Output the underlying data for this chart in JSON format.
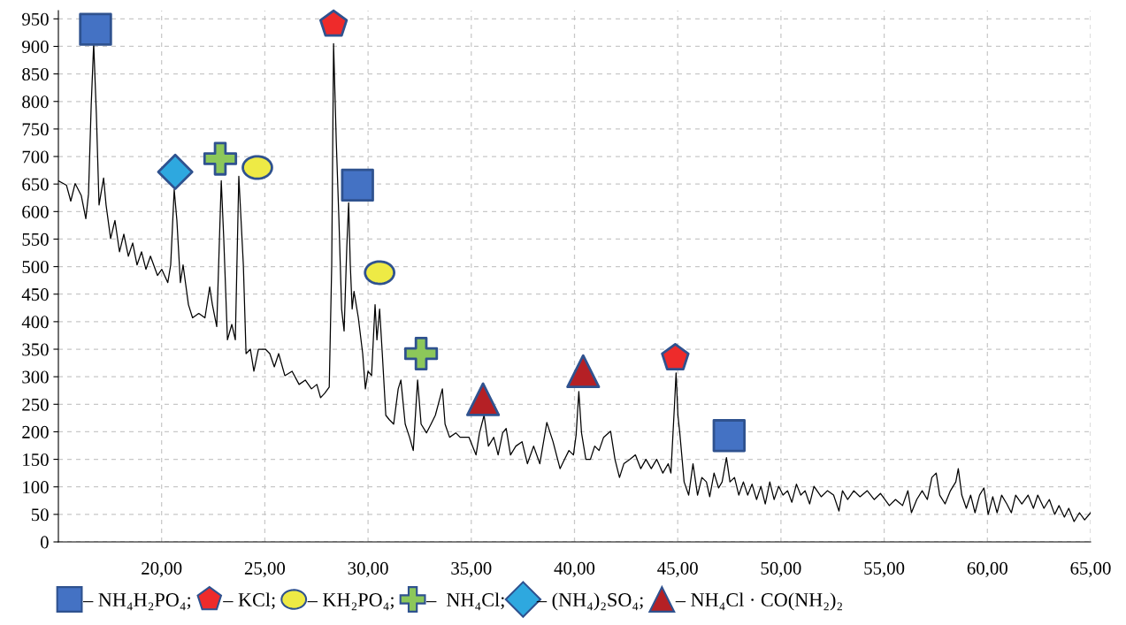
{
  "chart_data": {
    "type": "line",
    "xlim": [
      15,
      65
    ],
    "ylim": [
      0,
      965
    ],
    "xticks": [
      {
        "value": 20,
        "label": "20,00"
      },
      {
        "value": 25,
        "label": "25,00"
      },
      {
        "value": 30,
        "label": "30,00"
      },
      {
        "value": 35,
        "label": "35,00"
      },
      {
        "value": 40,
        "label": "40,00"
      },
      {
        "value": 45,
        "label": "45,00"
      },
      {
        "value": 50,
        "label": "50,00"
      },
      {
        "value": 55,
        "label": "55,00"
      },
      {
        "value": 60,
        "label": "60,00"
      },
      {
        "value": 65,
        "label": "65,00"
      }
    ],
    "yticks": [
      0,
      50,
      100,
      150,
      200,
      250,
      300,
      350,
      400,
      450,
      500,
      550,
      600,
      650,
      700,
      750,
      800,
      850,
      900,
      950
    ],
    "grid": true,
    "legend": "bottom",
    "series": [
      {
        "color": "#000000",
        "x": [
          15.0,
          15.39,
          15.6,
          15.81,
          16.11,
          16.33,
          16.46,
          16.59,
          16.71,
          16.84,
          16.97,
          17.19,
          17.31,
          17.53,
          17.74,
          17.96,
          18.17,
          18.39,
          18.6,
          18.81,
          19.03,
          19.24,
          19.46,
          19.8,
          20.01,
          20.3,
          20.44,
          20.61,
          20.74,
          20.91,
          21.04,
          21.3,
          21.5,
          21.8,
          22.1,
          22.33,
          22.46,
          22.67,
          22.89,
          23.01,
          23.19,
          23.4,
          23.57,
          23.74,
          23.96,
          24.09,
          24.3,
          24.47,
          24.69,
          25.03,
          25.24,
          25.46,
          25.67,
          25.97,
          26.32,
          26.66,
          26.96,
          27.26,
          27.52,
          27.7,
          27.9,
          28.12,
          28.24,
          28.33,
          28.46,
          28.59,
          28.72,
          28.84,
          28.97,
          29.06,
          29.14,
          29.23,
          29.32,
          29.53,
          29.74,
          29.87,
          30.0,
          30.17,
          30.34,
          30.43,
          30.56,
          30.69,
          30.86,
          31.03,
          31.24,
          31.46,
          31.59,
          31.8,
          32.01,
          32.19,
          32.4,
          32.57,
          32.83,
          33.05,
          33.26,
          33.6,
          33.73,
          33.95,
          34.25,
          34.46,
          34.89,
          35.23,
          35.4,
          35.62,
          35.83,
          36.09,
          36.3,
          36.52,
          36.69,
          36.9,
          37.16,
          37.46,
          37.72,
          38.02,
          38.32,
          38.66,
          38.96,
          39.3,
          39.52,
          39.73,
          39.95,
          40.08,
          40.21,
          40.34,
          40.55,
          40.77,
          40.98,
          41.19,
          41.41,
          41.75,
          41.96,
          42.18,
          42.39,
          42.69,
          42.95,
          43.21,
          43.46,
          43.72,
          43.98,
          44.28,
          44.54,
          44.67,
          44.84,
          44.92,
          45.01,
          45.1,
          45.31,
          45.53,
          45.74,
          45.96,
          46.17,
          46.39,
          46.55,
          46.76,
          46.98,
          47.15,
          47.36,
          47.53,
          47.75,
          47.96,
          48.18,
          48.39,
          48.6,
          48.82,
          49.03,
          49.24,
          49.46,
          49.67,
          49.89,
          50.1,
          50.32,
          50.53,
          50.75,
          50.96,
          51.17,
          51.39,
          51.6,
          51.95,
          52.25,
          52.55,
          52.81,
          52.98,
          53.23,
          53.53,
          53.83,
          54.18,
          54.52,
          54.82,
          55.25,
          55.55,
          55.89,
          56.15,
          56.32,
          56.58,
          56.84,
          57.09,
          57.31,
          57.52,
          57.69,
          57.95,
          58.21,
          58.47,
          58.59,
          58.76,
          58.98,
          59.19,
          59.4,
          59.62,
          59.83,
          60.04,
          60.26,
          60.47,
          60.69,
          60.94,
          61.16,
          61.37,
          61.67,
          61.97,
          62.23,
          62.44,
          62.74,
          63.0,
          63.26,
          63.47,
          63.73,
          63.94,
          64.2,
          64.46,
          64.71,
          65.0
        ],
        "values": [
          656,
          648,
          619,
          651,
          629,
          587,
          632,
          793,
          905,
          777,
          612,
          661,
          612,
          551,
          584,
          527,
          559,
          519,
          543,
          503,
          527,
          495,
          519,
          484,
          495,
          471,
          503,
          640,
          584,
          471,
          503,
          431,
          407,
          415,
          407,
          463,
          431,
          391,
          656,
          551,
          367,
          395,
          367,
          664,
          503,
          342,
          350,
          310,
          350,
          350,
          342,
          318,
          342,
          302,
          310,
          286,
          294,
          278,
          286,
          262,
          270,
          281,
          503,
          905,
          728,
          584,
          423,
          383,
          535,
          616,
          503,
          423,
          455,
          407,
          342,
          278,
          310,
          302,
          431,
          367,
          423,
          342,
          230,
          222,
          214,
          278,
          294,
          214,
          190,
          166,
          294,
          214,
          198,
          214,
          230,
          278,
          214,
          190,
          198,
          190,
          190,
          158,
          198,
          230,
          174,
          190,
          158,
          198,
          206,
          158,
          174,
          182,
          142,
          174,
          142,
          217,
          182,
          133,
          150,
          166,
          158,
          195,
          273,
          198,
          150,
          150,
          174,
          166,
          190,
          201,
          150,
          117,
          142,
          150,
          158,
          133,
          150,
          133,
          150,
          125,
          142,
          125,
          246,
          307,
          230,
          198,
          109,
          85,
          142,
          85,
          117,
          109,
          82,
          125,
          98,
          109,
          153,
          109,
          117,
          85,
          109,
          85,
          105,
          77,
          101,
          69,
          109,
          77,
          101,
          85,
          93,
          72,
          105,
          85,
          93,
          69,
          101,
          82,
          93,
          85,
          56,
          93,
          77,
          93,
          82,
          93,
          77,
          88,
          66,
          77,
          66,
          93,
          53,
          77,
          93,
          77,
          117,
          125,
          85,
          69,
          93,
          109,
          133,
          85,
          61,
          85,
          53,
          85,
          98,
          50,
          82,
          53,
          85,
          69,
          53,
          85,
          69,
          85,
          61,
          85,
          61,
          77,
          50,
          66,
          45,
          61,
          37,
          53,
          40,
          53
        ]
      },
      {
        "type": "scatter",
        "name": "– NH₄H₂PO₄;",
        "color": "#4472c4",
        "marker": "square",
        "x": [
          16.8,
          29.49,
          47.49
        ],
        "values": [
          931,
          648,
          193
        ]
      },
      {
        "type": "scatter",
        "name": "– KCl;",
        "color": "#ee2b2b",
        "x": [
          28.33,
          44.88
        ],
        "values": [
          940,
          334
        ]
      },
      {
        "type": "scatter",
        "name": "– KH₂PO₄;",
        "color": "#eeea45",
        "marker": "circle",
        "x": [
          24.64,
          30.56
        ],
        "values": [
          680,
          489
        ]
      },
      {
        "type": "scatter",
        "name": "–  NH₄Cl;",
        "color": "#8cc75a",
        "marker": "cross",
        "x": [
          22.84,
          32.57
        ],
        "values": [
          696,
          342
        ]
      },
      {
        "type": "scatter",
        "name": "– (NH₄)₂SO₄;",
        "color": "#2ea8df",
        "marker": "diamond",
        "x": [
          20.66
        ],
        "values": [
          672
        ]
      },
      {
        "type": "scatter",
        "name": "– NH₄Cl · CO(NH₂)₂",
        "color": "#b52025",
        "marker": "triangle",
        "x": [
          35.57,
          40.42
        ],
        "values": [
          259,
          310
        ]
      }
    ]
  }
}
